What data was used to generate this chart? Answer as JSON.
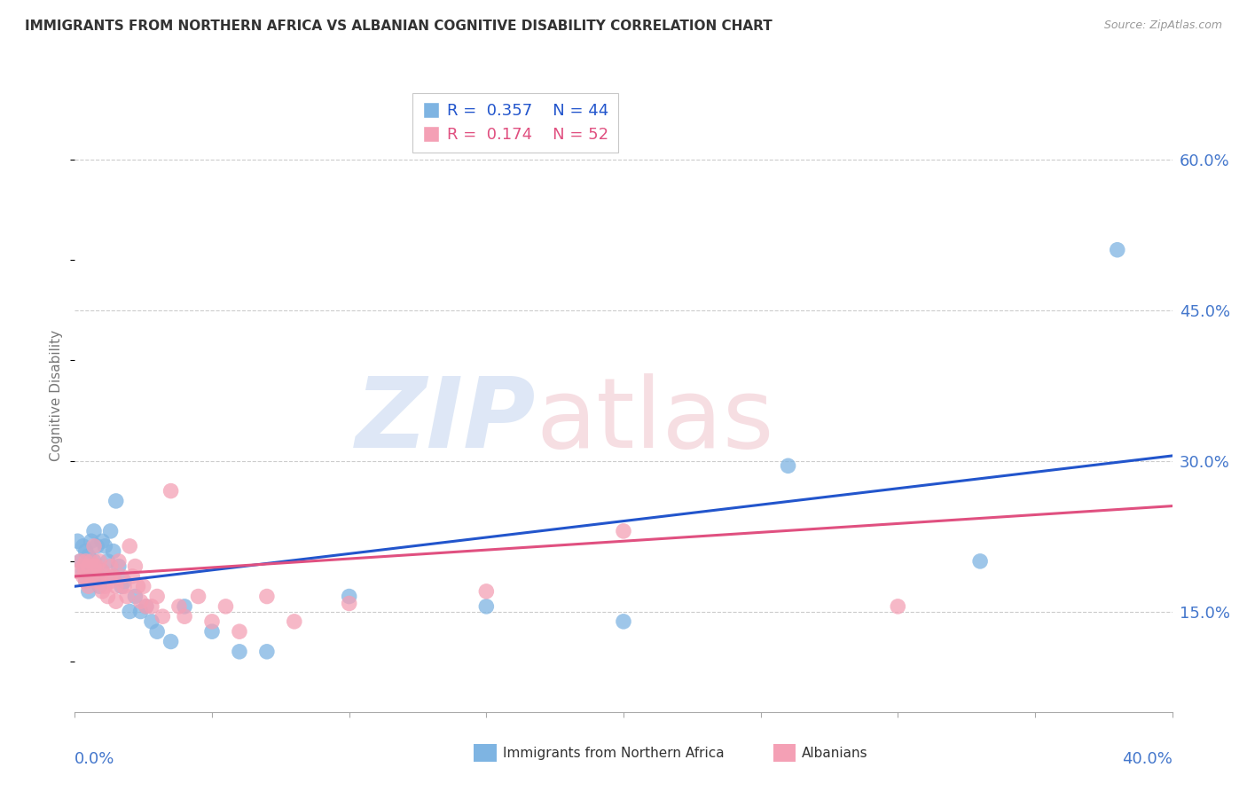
{
  "title": "IMMIGRANTS FROM NORTHERN AFRICA VS ALBANIAN COGNITIVE DISABILITY CORRELATION CHART",
  "source": "Source: ZipAtlas.com",
  "ylabel": "Cognitive Disability",
  "ytick_labels": [
    "15.0%",
    "30.0%",
    "45.0%",
    "60.0%"
  ],
  "ytick_values": [
    0.15,
    0.3,
    0.45,
    0.6
  ],
  "xtick_values": [
    0.0,
    0.05,
    0.1,
    0.15,
    0.2,
    0.25,
    0.3,
    0.35,
    0.4
  ],
  "xlim": [
    0.0,
    0.4
  ],
  "ylim": [
    0.05,
    0.68
  ],
  "blue_R": 0.357,
  "blue_N": 44,
  "pink_R": 0.174,
  "pink_N": 52,
  "blue_color": "#7EB4E2",
  "pink_color": "#F4A0B5",
  "blue_line_color": "#2255CC",
  "pink_line_color": "#E05080",
  "legend_label_blue": "Immigrants from Northern Africa",
  "legend_label_pink": "Albanians",
  "blue_scatter_x": [
    0.001,
    0.002,
    0.003,
    0.003,
    0.004,
    0.004,
    0.004,
    0.005,
    0.005,
    0.006,
    0.006,
    0.007,
    0.007,
    0.008,
    0.008,
    0.009,
    0.01,
    0.01,
    0.011,
    0.012,
    0.013,
    0.014,
    0.014,
    0.015,
    0.016,
    0.017,
    0.018,
    0.02,
    0.022,
    0.024,
    0.026,
    0.028,
    0.03,
    0.035,
    0.04,
    0.05,
    0.06,
    0.07,
    0.1,
    0.15,
    0.2,
    0.26,
    0.33,
    0.38
  ],
  "blue_scatter_y": [
    0.22,
    0.2,
    0.19,
    0.215,
    0.18,
    0.195,
    0.21,
    0.17,
    0.205,
    0.185,
    0.22,
    0.2,
    0.23,
    0.215,
    0.185,
    0.175,
    0.19,
    0.22,
    0.215,
    0.2,
    0.23,
    0.21,
    0.185,
    0.26,
    0.195,
    0.175,
    0.18,
    0.15,
    0.165,
    0.15,
    0.155,
    0.14,
    0.13,
    0.12,
    0.155,
    0.13,
    0.11,
    0.11,
    0.165,
    0.155,
    0.14,
    0.295,
    0.2,
    0.51
  ],
  "pink_scatter_x": [
    0.001,
    0.002,
    0.003,
    0.003,
    0.004,
    0.004,
    0.005,
    0.005,
    0.006,
    0.006,
    0.007,
    0.007,
    0.008,
    0.008,
    0.009,
    0.009,
    0.01,
    0.01,
    0.011,
    0.012,
    0.013,
    0.013,
    0.014,
    0.015,
    0.015,
    0.016,
    0.017,
    0.018,
    0.019,
    0.02,
    0.021,
    0.022,
    0.023,
    0.024,
    0.025,
    0.026,
    0.028,
    0.03,
    0.032,
    0.035,
    0.038,
    0.04,
    0.045,
    0.05,
    0.055,
    0.06,
    0.07,
    0.08,
    0.1,
    0.15,
    0.2,
    0.3
  ],
  "pink_scatter_y": [
    0.19,
    0.2,
    0.185,
    0.195,
    0.18,
    0.2,
    0.175,
    0.195,
    0.185,
    0.2,
    0.195,
    0.215,
    0.18,
    0.195,
    0.2,
    0.185,
    0.17,
    0.19,
    0.175,
    0.165,
    0.18,
    0.195,
    0.185,
    0.175,
    0.16,
    0.2,
    0.185,
    0.175,
    0.165,
    0.215,
    0.185,
    0.195,
    0.175,
    0.16,
    0.175,
    0.155,
    0.155,
    0.165,
    0.145,
    0.27,
    0.155,
    0.145,
    0.165,
    0.14,
    0.155,
    0.13,
    0.165,
    0.14,
    0.158,
    0.17,
    0.23,
    0.155
  ],
  "blue_trend_x": [
    0.0,
    0.4
  ],
  "blue_trend_y": [
    0.175,
    0.305
  ],
  "pink_trend_x": [
    0.0,
    0.4
  ],
  "pink_trend_y": [
    0.185,
    0.255
  ],
  "background_color": "#FFFFFF",
  "grid_color": "#CCCCCC",
  "axis_color": "#AAAAAA",
  "title_color": "#333333",
  "label_color": "#4477CC",
  "ylabel_color": "#777777"
}
